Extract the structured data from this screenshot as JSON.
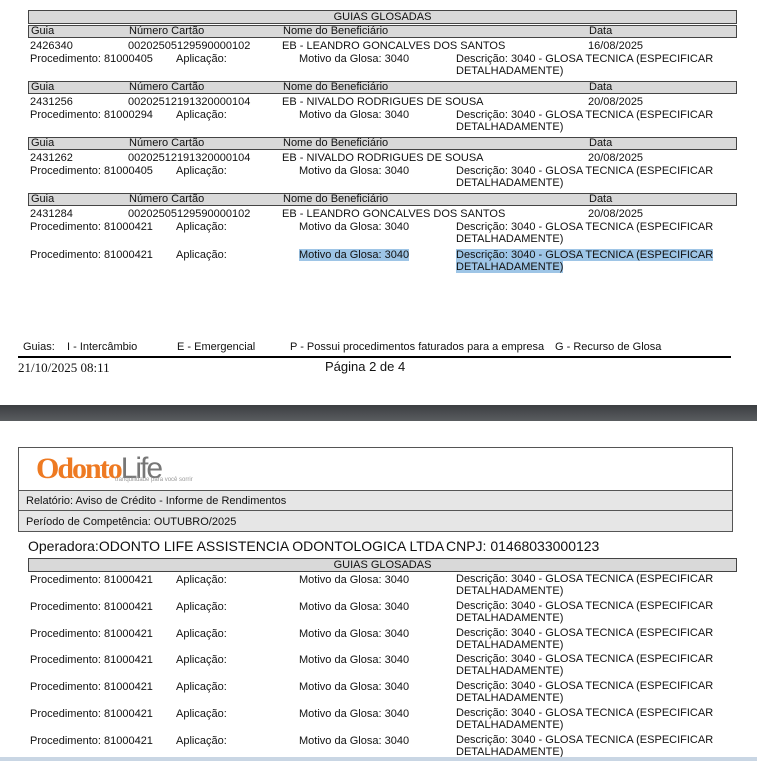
{
  "page1": {
    "section_title": "GUIAS GLOSADAS",
    "col_headers": {
      "guia": "Guia",
      "cartao": "Número Cartão",
      "nome": "Nome do Beneficiário",
      "data": "Data"
    },
    "groups": [
      {
        "guia": "2426340",
        "cartao": "00202505129590000102",
        "nome": "EB - LEANDRO GONCALVES DOS SANTOS",
        "data": "16/08/2025",
        "procs": [
          {
            "proc": "Procedimento: 81000405",
            "aplic": "Aplicação:",
            "motivo": "Motivo da Glosa: 3040",
            "desc1": "Descrição: 3040 - GLOSA TECNICA (ESPECIFICAR",
            "desc2": "DETALHADAMENTE)"
          }
        ]
      },
      {
        "guia": "2431256",
        "cartao": "00202512191320000104",
        "nome": "EB - NIVALDO RODRIGUES DE SOUSA",
        "data": "20/08/2025",
        "procs": [
          {
            "proc": "Procedimento: 81000294",
            "aplic": "Aplicação:",
            "motivo": "Motivo da Glosa: 3040",
            "desc1": "Descrição: 3040 - GLOSA TECNICA (ESPECIFICAR",
            "desc2": "DETALHADAMENTE)"
          }
        ]
      },
      {
        "guia": "2431262",
        "cartao": "00202512191320000104",
        "nome": "EB - NIVALDO RODRIGUES DE SOUSA",
        "data": "20/08/2025",
        "procs": [
          {
            "proc": "Procedimento: 81000405",
            "aplic": "Aplicação:",
            "motivo": "Motivo da Glosa: 3040",
            "desc1": "Descrição: 3040 - GLOSA TECNICA (ESPECIFICAR",
            "desc2": "DETALHADAMENTE)"
          }
        ]
      },
      {
        "guia": "2431284",
        "cartao": "00202505129590000102",
        "nome": "EB - LEANDRO GONCALVES DOS SANTOS",
        "data": "20/08/2025",
        "procs": [
          {
            "proc": "Procedimento: 81000421",
            "aplic": "Aplicação:",
            "motivo": "Motivo da Glosa: 3040",
            "desc1": "Descrição: 3040 - GLOSA TECNICA (ESPECIFICAR",
            "desc2": "DETALHADAMENTE)"
          },
          {
            "proc": "Procedimento: 81000421",
            "aplic": "Aplicação:",
            "motivo": "Motivo da Glosa: 3040",
            "desc1": "Descrição: 3040 - GLOSA TECNICA (ESPECIFICAR",
            "desc2": "DETALHADAMENTE)"
          }
        ]
      }
    ],
    "legend": {
      "guias": "Guias:",
      "i": "I - Intercâmbio",
      "e": "E - Emergencial",
      "p": "P - Possui procedimentos faturados para a empresa",
      "g": "G - Recurso de Glosa"
    },
    "timestamp": "21/10/2025 08:11",
    "page_label": "Página 2 de 4"
  },
  "page2": {
    "logo": {
      "text_orange": "Odonto",
      "text_gray": "Life",
      "tagline": "tranquilidade para você sorrir"
    },
    "relatorio": "Relatório:  Aviso de Crédito - Informe de Rendimentos",
    "periodo": "Período de Competência:  OUTUBRO/2025",
    "operadora": "Operadora:ODONTO LIFE ASSISTENCIA ODONTOLOGICA LTDA",
    "cnpj": "CNPJ: 01468033000123",
    "section_title": "GUIAS GLOSADAS",
    "rows": [
      {
        "proc": "Procedimento: 81000421",
        "aplic": "Aplicação:",
        "motivo": "Motivo da Glosa: 3040",
        "desc1": "Descrição: 3040 - GLOSA TECNICA (ESPECIFICAR",
        "desc2": "DETALHADAMENTE)"
      },
      {
        "proc": "Procedimento: 81000421",
        "aplic": "Aplicação:",
        "motivo": "Motivo da Glosa: 3040",
        "desc1": "Descrição: 3040 - GLOSA TECNICA (ESPECIFICAR",
        "desc2": "DETALHADAMENTE)"
      },
      {
        "proc": "Procedimento: 81000421",
        "aplic": "Aplicação:",
        "motivo": "Motivo da Glosa: 3040",
        "desc1": "Descrição: 3040 - GLOSA TECNICA (ESPECIFICAR",
        "desc2": "DETALHADAMENTE)"
      },
      {
        "proc": "Procedimento: 81000421",
        "aplic": "Aplicação:",
        "motivo": "Motivo da Glosa: 3040",
        "desc1": "Descrição: 3040 - GLOSA TECNICA (ESPECIFICAR",
        "desc2": "DETALHADAMENTE)"
      },
      {
        "proc": "Procedimento: 81000421",
        "aplic": "Aplicação:",
        "motivo": "Motivo da Glosa: 3040",
        "desc1": "Descrição: 3040 - GLOSA TECNICA (ESPECIFICAR",
        "desc2": "DETALHADAMENTE)"
      },
      {
        "proc": "Procedimento: 81000421",
        "aplic": "Aplicação:",
        "motivo": "Motivo da Glosa: 3040",
        "desc1": "Descrição: 3040 - GLOSA TECNICA (ESPECIFICAR",
        "desc2": "DETALHADAMENTE)"
      },
      {
        "proc": "Procedimento: 81000421",
        "aplic": "Aplicação:",
        "motivo": "Motivo da Glosa: 3040",
        "desc1": "Descrição: 3040 - GLOSA TECNICA (ESPECIFICAR",
        "desc2": "DETALHADAMENTE)"
      }
    ]
  },
  "colors": {
    "header_gray": "#d9d9d9",
    "logo_orange": "#ee7a22",
    "selection": "#9ec5e6",
    "viewer_gap": "#4a4d50"
  }
}
